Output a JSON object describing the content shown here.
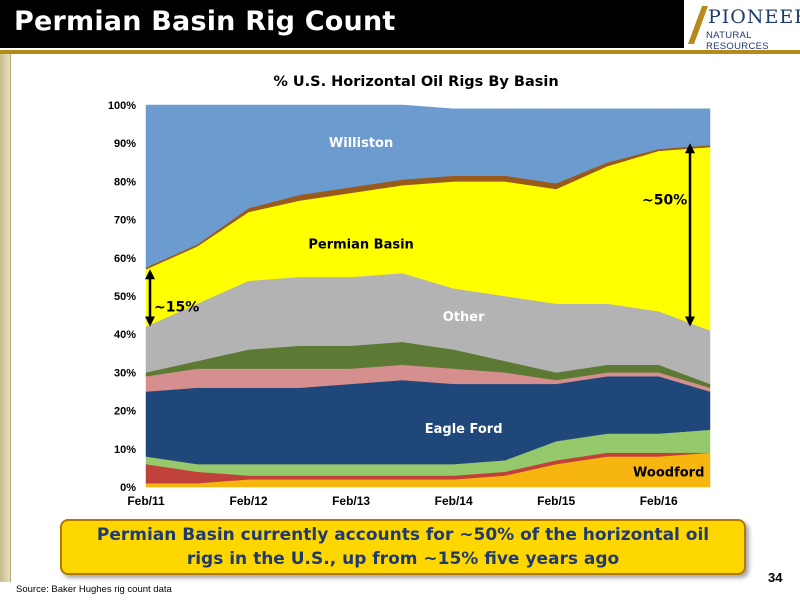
{
  "header": {
    "title": "Permian Basin Rig Count"
  },
  "logo": {
    "name": "PIONEER",
    "tagline": "NATURAL RESOURCES"
  },
  "callout": {
    "text": "Permian Basin currently accounts for ~50% of the horizontal oil rigs in the U.S., up from ~15% five years ago"
  },
  "footer": {
    "source": "Source: Baker Hughes rig count data",
    "page_number": "34"
  },
  "colors": {
    "williston": "#6c9bd0",
    "permian": "#ffff00",
    "brown_band": "#9a5a1c",
    "other": "#b3b3b3",
    "olive": "#5d7a35",
    "pink": "#d68f8f",
    "eagle_ford": "#1f477a",
    "light_green": "#96c96b",
    "woodford": "#f7b50f",
    "red": "#c0413a",
    "accent_gold": "#ffd700",
    "brand_navy": "#1f3a6e"
  },
  "chart_data": {
    "type": "area",
    "stacked": true,
    "title": "% U.S. Horizontal Oil Rigs By Basin",
    "xlabel": "",
    "ylabel": "",
    "ylim": [
      0,
      100
    ],
    "yticks": [
      "0%",
      "10%",
      "20%",
      "30%",
      "40%",
      "50%",
      "60%",
      "70%",
      "80%",
      "90%",
      "100%"
    ],
    "xticks": [
      "Feb/11",
      "Feb/12",
      "Feb/13",
      "Feb/14",
      "Feb/15",
      "Feb/16"
    ],
    "x": [
      "Feb/11",
      "Aug/11",
      "Feb/12",
      "Aug/12",
      "Feb/13",
      "Aug/13",
      "Feb/14",
      "Aug/14",
      "Feb/15",
      "Aug/15",
      "Feb/16",
      "Aug/16"
    ],
    "series": [
      {
        "name": "Woodford",
        "color": "#f7b50f",
        "values": [
          1,
          1,
          2,
          2,
          2,
          2,
          2,
          3,
          6,
          8,
          8,
          9
        ]
      },
      {
        "name": "",
        "color": "#c0413a",
        "values": [
          5,
          3,
          1,
          1,
          1,
          1,
          1,
          1,
          1,
          1,
          1,
          0
        ]
      },
      {
        "name": "",
        "color": "#96c96b",
        "values": [
          2,
          2,
          3,
          3,
          3,
          3,
          3,
          3,
          5,
          5,
          5,
          6
        ]
      },
      {
        "name": "Eagle Ford",
        "color": "#1f477a",
        "values": [
          17,
          20,
          20,
          20,
          21,
          22,
          21,
          20,
          15,
          15,
          15,
          10
        ]
      },
      {
        "name": "",
        "color": "#d68f8f",
        "values": [
          4,
          5,
          5,
          5,
          4,
          4,
          4,
          3,
          1,
          1,
          1,
          1
        ]
      },
      {
        "name": "",
        "color": "#5d7a35",
        "values": [
          1,
          2,
          5,
          6,
          6,
          6,
          5,
          3,
          2,
          2,
          2,
          1
        ]
      },
      {
        "name": "Other",
        "color": "#b3b3b3",
        "values": [
          12,
          15,
          18,
          18,
          18,
          18,
          16,
          17,
          18,
          16,
          14,
          14
        ]
      },
      {
        "name": "Permian Basin",
        "color": "#ffff00",
        "values": [
          15,
          15,
          18,
          20,
          22,
          23,
          28,
          30,
          30,
          36,
          42,
          48
        ]
      },
      {
        "name": "",
        "color": "#9a5a1c",
        "values": [
          0.5,
          0.5,
          1,
          1.5,
          1.5,
          1.5,
          1.5,
          1.5,
          1.5,
          1,
          0.5,
          0.5
        ]
      },
      {
        "name": "Williston",
        "color": "#6c9bd0",
        "values": [
          42.5,
          36.5,
          27,
          23.5,
          21.5,
          19.5,
          17.5,
          17.5,
          19.5,
          14,
          10.5,
          9.5
        ]
      }
    ],
    "annotations": [
      {
        "text": "~15%",
        "x": "Feb/11",
        "from": 42,
        "to": 57
      },
      {
        "text": "~50%",
        "x": "Aug/16",
        "from": 42,
        "to": 90
      }
    ]
  }
}
